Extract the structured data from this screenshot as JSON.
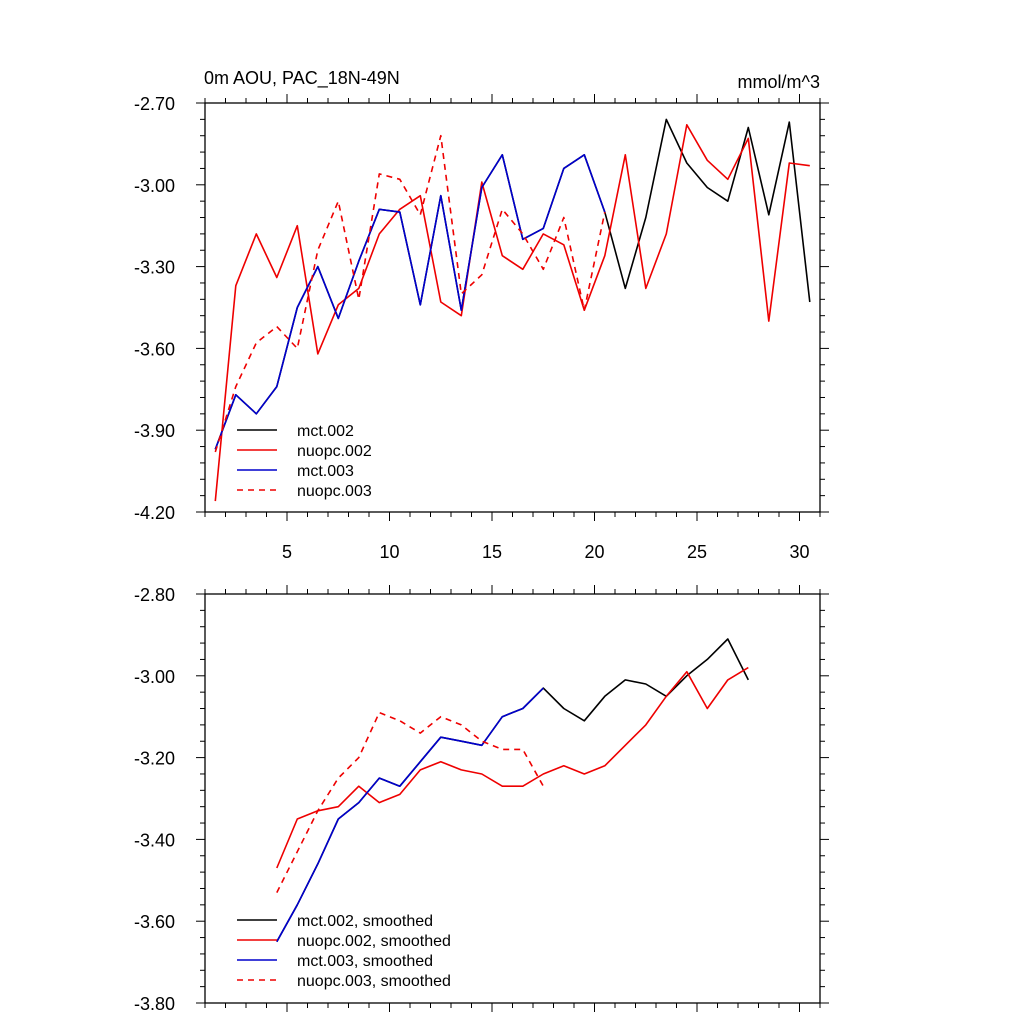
{
  "colors": {
    "mct002": "#000000",
    "nuopc002": "#ee0000",
    "mct003": "#0000cc",
    "nuopc003": "#ee0000"
  },
  "chart_data": [
    {
      "type": "line",
      "title": "0m AOU, PAC_18N-49N",
      "units": "mmol/m^3",
      "xlim": [
        1,
        31
      ],
      "ylim": [
        -4.2,
        -2.7
      ],
      "yticks": [
        "-2.70",
        "-3.00",
        "-3.30",
        "-3.60",
        "-3.90",
        "-4.20"
      ],
      "ytick_values": [
        -2.7,
        -3.0,
        -3.3,
        -3.6,
        -3.9,
        -4.2
      ],
      "xticks": [
        "5",
        "10",
        "15",
        "20",
        "25",
        "30"
      ],
      "xtick_values": [
        5,
        10,
        15,
        20,
        25,
        30
      ],
      "show_x_tick_labels": true,
      "legend": [
        "mct.002",
        "nuopc.002",
        "mct.003",
        "nuopc.003"
      ],
      "series": [
        {
          "name": "mct.002",
          "color_key": "mct002",
          "dash": false,
          "x": [
            1.5,
            2.5,
            3.5,
            4.5,
            5.5,
            6.5,
            7.5,
            8.5,
            9.5,
            10.5,
            11.5,
            12.5,
            13.5,
            14.5,
            15.5,
            16.5,
            17.5,
            18.5,
            19.5,
            20.5,
            21.5,
            22.5,
            23.5,
            24.5,
            25.5,
            26.5,
            27.5,
            28.5,
            29.5,
            30.5
          ],
          "values": [
            -3.97,
            -3.77,
            -3.84,
            -3.74,
            -3.45,
            -3.3,
            -3.49,
            -3.28,
            -3.09,
            -3.1,
            -3.44,
            -3.04,
            -3.46,
            -3.01,
            -2.89,
            -3.2,
            -3.16,
            -2.94,
            -2.89,
            -3.1,
            -3.38,
            -3.12,
            -2.76,
            -2.92,
            -3.01,
            -3.06,
            -2.79,
            -3.11,
            -2.77,
            -3.43
          ]
        },
        {
          "name": "nuopc.002",
          "color_key": "nuopc002",
          "dash": false,
          "x": [
            1.5,
            2.5,
            3.5,
            4.5,
            5.5,
            6.5,
            7.5,
            8.5,
            9.5,
            10.5,
            11.5,
            12.5,
            13.5,
            14.5,
            15.5,
            16.5,
            17.5,
            18.5,
            19.5,
            20.5,
            21.5,
            22.5,
            23.5,
            24.5,
            25.5,
            26.5,
            27.5,
            28.5,
            29.5,
            30.5
          ],
          "values": [
            -4.16,
            -3.37,
            -3.18,
            -3.34,
            -3.15,
            -3.62,
            -3.44,
            -3.38,
            -3.18,
            -3.09,
            -3.04,
            -3.43,
            -3.48,
            -2.99,
            -3.26,
            -3.31,
            -3.18,
            -3.22,
            -3.46,
            -3.26,
            -2.89,
            -3.38,
            -3.18,
            -2.78,
            -2.91,
            -2.98,
            -2.83,
            -3.5,
            -2.92,
            -2.93
          ]
        },
        {
          "name": "mct.003",
          "color_key": "mct003",
          "dash": false,
          "x": [
            1.5,
            2.5,
            3.5,
            4.5,
            5.5,
            6.5,
            7.5,
            8.5,
            9.5,
            10.5,
            11.5,
            12.5,
            13.5,
            14.5,
            15.5,
            16.5,
            17.5,
            18.5,
            19.5,
            20.5
          ],
          "values": [
            -3.97,
            -3.77,
            -3.84,
            -3.74,
            -3.45,
            -3.3,
            -3.49,
            -3.28,
            -3.09,
            -3.1,
            -3.44,
            -3.04,
            -3.46,
            -3.01,
            -2.89,
            -3.2,
            -3.16,
            -2.94,
            -2.89,
            -3.1
          ]
        },
        {
          "name": "nuopc.003",
          "color_key": "nuopc003",
          "dash": true,
          "x": [
            1.5,
            2.5,
            3.5,
            4.5,
            5.5,
            6.5,
            7.5,
            8.5,
            9.5,
            10.5,
            11.5,
            12.5,
            13.5,
            14.5,
            15.5,
            16.5,
            17.5,
            18.5,
            19.5,
            20.5
          ],
          "values": [
            -3.98,
            -3.74,
            -3.58,
            -3.52,
            -3.6,
            -3.24,
            -3.06,
            -3.42,
            -2.96,
            -2.98,
            -3.11,
            -2.82,
            -3.4,
            -3.33,
            -3.09,
            -3.18,
            -3.31,
            -3.12,
            -3.46,
            -3.1
          ]
        }
      ]
    },
    {
      "type": "line",
      "title": "",
      "units": "",
      "xlim": [
        1,
        31
      ],
      "ylim": [
        -3.8,
        -2.8
      ],
      "yticks": [
        "-2.80",
        "-3.00",
        "-3.20",
        "-3.40",
        "-3.60",
        "-3.80"
      ],
      "ytick_values": [
        -2.8,
        -3.0,
        -3.2,
        -3.4,
        -3.6,
        -3.8
      ],
      "xticks": [],
      "xtick_values": [
        5,
        10,
        15,
        20,
        25,
        30
      ],
      "show_x_tick_labels": false,
      "legend": [
        "mct.002, smoothed",
        "nuopc.002, smoothed",
        "mct.003, smoothed",
        "nuopc.003, smoothed"
      ],
      "series": [
        {
          "name": "mct.002, smoothed",
          "color_key": "mct002",
          "dash": false,
          "x": [
            4.5,
            5.5,
            6.5,
            7.5,
            8.5,
            9.5,
            10.5,
            11.5,
            12.5,
            13.5,
            14.5,
            15.5,
            16.5,
            17.5,
            18.5,
            19.5,
            20.5,
            21.5,
            22.5,
            23.5,
            24.5,
            25.5,
            26.5,
            27.5
          ],
          "values": [
            -3.65,
            -3.56,
            -3.46,
            -3.35,
            -3.31,
            -3.25,
            -3.27,
            -3.21,
            -3.15,
            -3.16,
            -3.17,
            -3.1,
            -3.08,
            -3.03,
            -3.08,
            -3.11,
            -3.05,
            -3.01,
            -3.02,
            -3.05,
            -3.0,
            -2.96,
            -2.91,
            -3.01
          ]
        },
        {
          "name": "nuopc.002, smoothed",
          "color_key": "nuopc002",
          "dash": false,
          "x": [
            4.5,
            5.5,
            6.5,
            7.5,
            8.5,
            9.5,
            10.5,
            11.5,
            12.5,
            13.5,
            14.5,
            15.5,
            16.5,
            17.5,
            18.5,
            19.5,
            20.5,
            21.5,
            22.5,
            23.5,
            24.5,
            25.5,
            26.5,
            27.5
          ],
          "values": [
            -3.47,
            -3.35,
            -3.33,
            -3.32,
            -3.27,
            -3.31,
            -3.29,
            -3.23,
            -3.21,
            -3.23,
            -3.24,
            -3.27,
            -3.27,
            -3.24,
            -3.22,
            -3.24,
            -3.22,
            -3.17,
            -3.12,
            -3.05,
            -2.99,
            -3.08,
            -3.01,
            -2.98
          ]
        },
        {
          "name": "mct.003, smoothed",
          "color_key": "mct003",
          "dash": false,
          "x": [
            4.5,
            5.5,
            6.5,
            7.5,
            8.5,
            9.5,
            10.5,
            11.5,
            12.5,
            13.5,
            14.5,
            15.5,
            16.5,
            17.5
          ],
          "values": [
            -3.65,
            -3.56,
            -3.46,
            -3.35,
            -3.31,
            -3.25,
            -3.27,
            -3.21,
            -3.15,
            -3.16,
            -3.17,
            -3.1,
            -3.08,
            -3.03
          ]
        },
        {
          "name": "nuopc.003, smoothed",
          "color_key": "nuopc003",
          "dash": true,
          "x": [
            4.5,
            5.5,
            6.5,
            7.5,
            8.5,
            9.5,
            10.5,
            11.5,
            12.5,
            13.5,
            14.5,
            15.5,
            16.5,
            17.5
          ],
          "values": [
            -3.53,
            -3.43,
            -3.33,
            -3.25,
            -3.2,
            -3.09,
            -3.11,
            -3.14,
            -3.1,
            -3.12,
            -3.16,
            -3.18,
            -3.18,
            -3.27
          ]
        }
      ]
    }
  ]
}
